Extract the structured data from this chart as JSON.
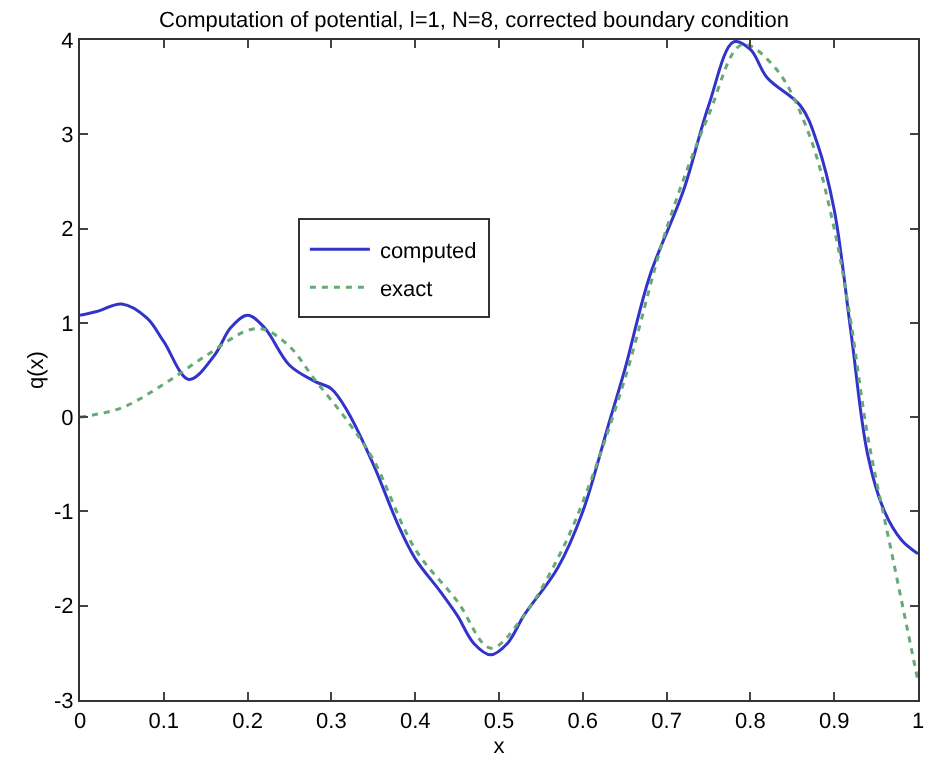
{
  "chart_data": {
    "type": "line",
    "title": "Computation of potential, l=1, N=8, corrected boundary condition",
    "xlabel": "x",
    "ylabel": "q(x)",
    "xlim": [
      0,
      1
    ],
    "ylim": [
      -3,
      4
    ],
    "xticks": [
      0,
      0.1,
      0.2,
      0.3,
      0.4,
      0.5,
      0.6,
      0.7,
      0.8,
      0.9,
      1
    ],
    "yticks": [
      -3,
      -2,
      -1,
      0,
      1,
      2,
      3,
      4
    ],
    "legend": "top left",
    "marker": "none",
    "series": [
      {
        "name": "computed",
        "color": "#3333cc",
        "line_style": "solid",
        "x": [
          0,
          0.02,
          0.05,
          0.08,
          0.1,
          0.13,
          0.16,
          0.18,
          0.2,
          0.22,
          0.25,
          0.28,
          0.3,
          0.32,
          0.35,
          0.38,
          0.4,
          0.43,
          0.45,
          0.47,
          0.49,
          0.51,
          0.53,
          0.57,
          0.6,
          0.63,
          0.65,
          0.68,
          0.72,
          0.75,
          0.78,
          0.8,
          0.82,
          0.86,
          0.88,
          0.9,
          0.92,
          0.94,
          0.96,
          0.98,
          1.0
        ],
        "values": [
          1.08,
          1.12,
          1.2,
          1.05,
          0.8,
          0.4,
          0.65,
          0.95,
          1.08,
          0.95,
          0.55,
          0.38,
          0.3,
          0.05,
          -0.5,
          -1.15,
          -1.5,
          -1.85,
          -2.1,
          -2.4,
          -2.52,
          -2.4,
          -2.1,
          -1.6,
          -1.0,
          -0.1,
          0.5,
          1.5,
          2.4,
          3.3,
          3.98,
          3.9,
          3.6,
          3.3,
          2.9,
          2.2,
          0.9,
          -0.4,
          -1.0,
          -1.3,
          -1.45
        ]
      },
      {
        "name": "exact",
        "color": "#66aa77",
        "line_style": "dotted",
        "x": [
          0,
          0.05,
          0.1,
          0.15,
          0.2,
          0.22,
          0.25,
          0.28,
          0.32,
          0.35,
          0.4,
          0.45,
          0.49,
          0.53,
          0.57,
          0.6,
          0.65,
          0.7,
          0.75,
          0.79,
          0.83,
          0.87,
          0.9,
          0.92,
          0.94,
          0.97,
          1.0
        ],
        "values": [
          0,
          0.1,
          0.35,
          0.65,
          0.92,
          0.93,
          0.75,
          0.4,
          -0.05,
          -0.45,
          -1.4,
          -1.95,
          -2.45,
          -2.1,
          -1.5,
          -0.9,
          0.4,
          2.0,
          3.2,
          3.95,
          3.7,
          3.0,
          2.0,
          1.0,
          -0.2,
          -1.5,
          -2.8
        ]
      }
    ]
  }
}
